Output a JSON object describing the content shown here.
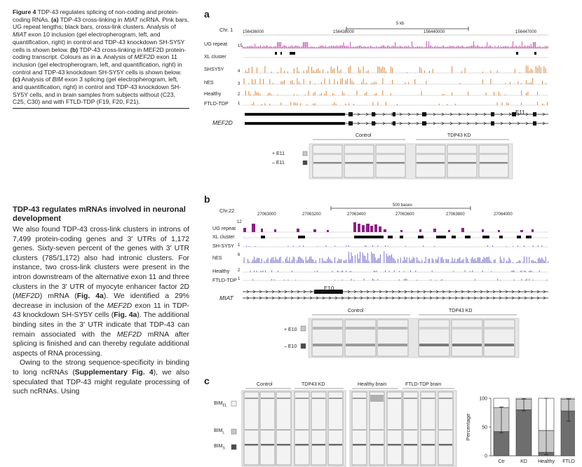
{
  "caption": {
    "label": "Figure 4",
    "title": "TDP-43 regulates splicing of non-coding and protein-coding RNAs.",
    "a_tag": "(a)",
    "a_text_1": "TDP-43 cross-linking in",
    "a_gene": "MIAT",
    "a_text_2": "ncRNA. Pink bars, UG repeat lengths; black bars, cross-link clusters. Analysis of",
    "a_gene_2": "MIAT",
    "a_text_3": "exon 10 inclusion (gel electropherogram, left, and quantification, right) in control and TDP-43 knockdown SH-SY5Y cells is shown below.",
    "b_tag": "(b)",
    "b_text_1": "TDP-43 cross-linking in MEF2D protein-coding transcript. Colours as in",
    "b_ref": "a",
    "b_text_2": ". Analysis of",
    "b_gene": "MEF2D",
    "b_text_3": "exon 11 inclusion (gel electropherogram, left, and quantification, right) in control and TDP-43 knockdown SH-SY5Y cells is shown below.",
    "c_tag": "(c)",
    "c_text_1": "Analysis of",
    "c_gene": "BIM",
    "c_text_2": "exon 3 splicing (gel electropherogram, left, and quantification, right) in control and TDP-43 knockdown SH-SY5Y cells, and in brain samples from subjects without (C23, C25, C30) and with FTLD-TDP (F19, F20, F21)."
  },
  "article": {
    "section_title": "TDP-43 regulates mRNAs involved in neuronal development",
    "p1_a": "We also found TDP-43 cross-link clusters in introns of 7,499 protein-coding genes and 3′ UTRs of 1,172 genes. Sixty-seven percent of the genes with 3′ UTR clusters (785/1,172) also had intronic clusters. For instance, two cross-link clusters were present in the intron downstream of the alternative exon 11 and three clusters in the 3′ UTR of myocyte enhancer factor 2D (",
    "p1_gene": "MEF2D",
    "p1_b": ") mRNA (",
    "p1_fig": "Fig. 4a",
    "p1_c": "). We identified a 29% decrease in inclusion of the",
    "p1_gene2": "MEF2D",
    "p1_d": "exon 11 in TDP-43 knockdown SH-SY5Y cells (",
    "p1_fig2": "Fig. 4a",
    "p1_e": "). The additional binding sites in the 3′ UTR indicate that TDP-43 can remain associated with the",
    "p1_gene3": "MEF2D",
    "p1_f": "mRNA after splicing is finished and can thereby regulate additional aspects of RNA processing.",
    "p2_a": "Owing to the strong sequence-specificity in binding to long ncRNAs (",
    "p2_fig": "Supplementary Fig. 4",
    "p2_b": "), we also speculated that TDP-43 might regulate processing of such ncRNAs. Using"
  },
  "panel_a": {
    "letter": "a",
    "chr": "Chr. 1",
    "scale": "5 kb",
    "coords": [
      "156436000",
      "156438000",
      "156440000",
      "156447000"
    ],
    "tracks": [
      {
        "name": "UG repeat",
        "max": "15"
      },
      {
        "name": "XL cluster",
        "max": ""
      },
      {
        "name": "SHSY5Y",
        "max": "4"
      },
      {
        "name": "hES",
        "max": "3"
      },
      {
        "name": "Healthy",
        "max": "2"
      },
      {
        "name": "FTLD-TDP",
        "max": "1"
      }
    ],
    "gene": "MEF2D",
    "exon_label": "E11",
    "gel_groups": [
      "Control",
      "TDP43 KD"
    ],
    "bands": [
      "+ E11",
      "– E11"
    ]
  },
  "panel_b": {
    "letter": "b",
    "chr": "Chr.22",
    "scale": "500 bases",
    "coords": [
      "27063000",
      "27063200",
      "27063400",
      "27063600",
      "27063800",
      "27064000"
    ],
    "tracks": [
      {
        "name": "UG repeat",
        "max": "12"
      },
      {
        "name": "XL cluster",
        "max": ""
      },
      {
        "name": "SH-SY5Y",
        "max": "1"
      },
      {
        "name": "hES",
        "max": "6"
      },
      {
        "name": "Healthy",
        "max": "2"
      },
      {
        "name": "FTLD-TDP",
        "max": "1"
      }
    ],
    "gene": "MIAT",
    "exon_label": "E10",
    "gel_groups": [
      "Control",
      "TDP43 KD"
    ],
    "bands": [
      "+ E10",
      "– E10"
    ]
  },
  "panel_c": {
    "letter": "c",
    "gel_groups": [
      "Control",
      "TDP43 KD",
      "Healthy brain",
      "FTLD-TDP brain"
    ],
    "bands": [
      {
        "main": "BIM",
        "sub": "EL"
      },
      {
        "main": "BIM",
        "sub": "L"
      },
      {
        "main": "BIM",
        "sub": "S"
      }
    ]
  },
  "colors": {
    "ug_a": "#c24aa8",
    "xl": "#111111",
    "clip_a": "#d9853b",
    "ug_b": "#8e1f86",
    "clip_b": "#6b63c9",
    "band_el": "#f4f4f4",
    "band_l": "#c8c8c8",
    "band_s": "#4a4a4a"
  },
  "chart_data": {
    "type": "bar",
    "stacked": true,
    "categories": [
      "Ctr",
      "KD",
      "Healthy",
      "FTLD"
    ],
    "ylabel": "Percentage",
    "ylim": [
      0,
      100
    ],
    "yticks": [
      "0",
      "50",
      "100"
    ],
    "series": [
      {
        "values": [
          42,
          80,
          6,
          78
        ],
        "color": "#6e6e6e"
      },
      {
        "values": [
          42,
          18,
          38,
          20
        ],
        "color": "#c8c8c8"
      },
      {
        "values": [
          16,
          2,
          56,
          2
        ],
        "color": "#ffffff"
      }
    ],
    "error_tops": [
      85,
      99,
      100,
      99
    ],
    "error_bottoms": [
      40,
      78,
      2,
      60
    ]
  }
}
